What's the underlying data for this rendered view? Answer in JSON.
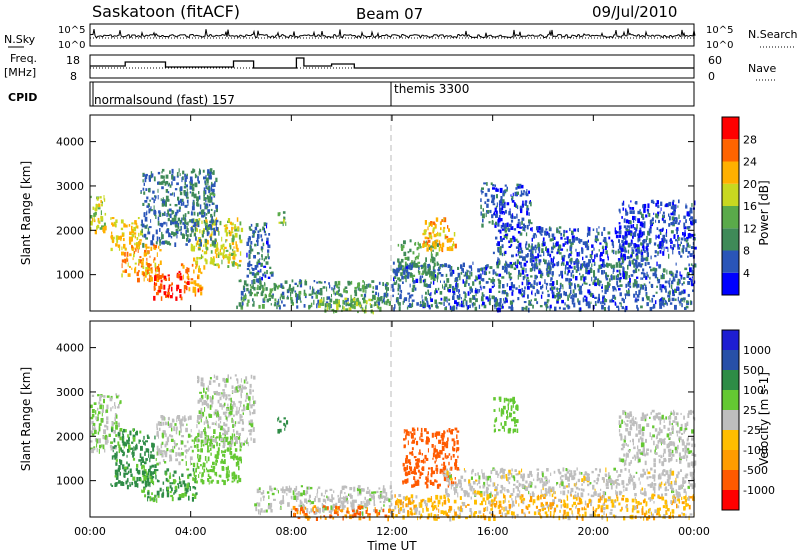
{
  "header": {
    "station": "Saskatoon (fitACF)",
    "beam": "Beam 07",
    "date": "09/Jul/2010"
  },
  "noise_panel": {
    "left_label": "N.Sky",
    "right_label": "N.Search",
    "left_ticks": [
      "10^5",
      "10^0"
    ],
    "right_ticks": [
      "10^5",
      "10^0"
    ]
  },
  "freq_panel": {
    "left_label_line1": "Freq.",
    "left_label_line2": "[MHz]",
    "left_ticks": [
      "18",
      "8"
    ],
    "right_label": "Nave",
    "right_ticks": [
      "60",
      "0"
    ]
  },
  "cpid_panel": {
    "label": "CPID",
    "modes": [
      {
        "name": "normalsound (fast) 157",
        "start_hour": 0
      },
      {
        "name": "themis 3300",
        "start_hour": 12.0
      }
    ]
  },
  "colors": {
    "power_scale": [
      "#0000ff",
      "#2a55b8",
      "#3f8a58",
      "#5aaa4a",
      "#c8d820",
      "#ffb000",
      "#ff6400",
      "#ff0000"
    ],
    "velocity_scale": [
      "#ff0000",
      "#ff5a00",
      "#ff9c00",
      "#ffbe00",
      "#bebebe",
      "#64c832",
      "#2e8c46",
      "#2850a8",
      "#1e1ed2"
    ],
    "noon_marker": "#bbbbbb"
  },
  "chart_data": [
    {
      "type": "heatmap",
      "quantity": "Power",
      "ylabel": "Slant Range [km]",
      "yticks": [
        1000,
        2000,
        3000,
        4000
      ],
      "ylim": [
        180,
        4600
      ],
      "xlim": [
        0,
        24
      ],
      "colorbar_label": "Power [dB]",
      "colorbar_ticks": [
        4,
        8,
        12,
        16,
        20,
        24,
        28
      ],
      "colorbar_range": [
        0,
        32
      ],
      "regions": [
        {
          "t0": 0.0,
          "t1": 0.6,
          "r0": 2000,
          "r1": 2900,
          "v": 18
        },
        {
          "t0": 0.8,
          "t1": 2.0,
          "r0": 1600,
          "r1": 2300,
          "v": 20
        },
        {
          "t0": 1.2,
          "t1": 2.8,
          "r0": 900,
          "r1": 1700,
          "v": 23
        },
        {
          "t0": 2.5,
          "t1": 3.6,
          "r0": 500,
          "r1": 1100,
          "v": 28
        },
        {
          "t0": 3.6,
          "t1": 4.4,
          "r0": 600,
          "r1": 1300,
          "v": 25
        },
        {
          "t0": 4.0,
          "t1": 6.0,
          "r0": 1200,
          "r1": 2300,
          "v": 18
        },
        {
          "t0": 2.0,
          "t1": 5.0,
          "r0": 1700,
          "r1": 3400,
          "v": 8
        },
        {
          "t0": 6.2,
          "t1": 7.2,
          "r0": 900,
          "r1": 2200,
          "v": 7
        },
        {
          "t0": 7.4,
          "t1": 7.8,
          "r0": 2150,
          "r1": 2450,
          "v": 13
        },
        {
          "t0": 5.8,
          "t1": 12.0,
          "r0": 300,
          "r1": 900,
          "v": 10
        },
        {
          "t0": 9.0,
          "t1": 11.5,
          "r0": 180,
          "r1": 500,
          "v": 16
        },
        {
          "t0": 12.2,
          "t1": 13.8,
          "r0": 900,
          "r1": 1800,
          "v": 12
        },
        {
          "t0": 13.2,
          "t1": 14.5,
          "r0": 1600,
          "r1": 2300,
          "v": 22
        },
        {
          "t0": 12.0,
          "t1": 24.0,
          "r0": 250,
          "r1": 1300,
          "v": 7
        },
        {
          "t0": 16.0,
          "t1": 22.0,
          "r0": 1200,
          "r1": 2100,
          "v": 6
        },
        {
          "t0": 21.0,
          "t1": 24.0,
          "r0": 1400,
          "r1": 2700,
          "v": 5
        },
        {
          "t0": 4.5,
          "t1": 5.0,
          "r0": 2000,
          "r1": 3200,
          "v": 9
        },
        {
          "t0": 15.5,
          "t1": 17.5,
          "r0": 2100,
          "r1": 3100,
          "v": 6
        }
      ]
    },
    {
      "type": "heatmap",
      "quantity": "Velocity",
      "ylabel": "Slant Range [km]",
      "yticks": [
        1000,
        2000,
        3000,
        4000
      ],
      "ylim": [
        180,
        4600
      ],
      "xlim": [
        0,
        24
      ],
      "xlabel": "Time UT",
      "xticks": [
        "00:00",
        "04:00",
        "08:00",
        "12:00",
        "16:00",
        "20:00",
        "00:00"
      ],
      "colorbar_label": "Velocity [m s-1]",
      "colorbar_ticks": [
        "1000",
        "500",
        "100",
        "25",
        "-25",
        "-100",
        "-500",
        "-1000"
      ],
      "regions": [
        {
          "t0": 0.0,
          "t1": 1.2,
          "r0": 1700,
          "r1": 3000,
          "v": 25
        },
        {
          "t0": 0.8,
          "t1": 2.6,
          "r0": 900,
          "r1": 2200,
          "v": 120
        },
        {
          "t0": 2.0,
          "t1": 4.2,
          "r0": 600,
          "r1": 1300,
          "v": 110
        },
        {
          "t0": 2.6,
          "t1": 4.0,
          "r0": 1400,
          "r1": 2500,
          "v": 10
        },
        {
          "t0": 4.0,
          "t1": 6.0,
          "r0": 1000,
          "r1": 2100,
          "v": 60
        },
        {
          "t0": 4.2,
          "t1": 6.5,
          "r0": 1800,
          "r1": 3400,
          "v": 15
        },
        {
          "t0": 6.5,
          "t1": 12.0,
          "r0": 300,
          "r1": 900,
          "v": 5
        },
        {
          "t0": 8.0,
          "t1": 12.0,
          "r0": 180,
          "r1": 450,
          "v": -90
        },
        {
          "t0": 12.4,
          "t1": 14.6,
          "r0": 900,
          "r1": 2200,
          "v": -200
        },
        {
          "t0": 14.0,
          "t1": 24.0,
          "r0": 700,
          "r1": 1300,
          "v": 0
        },
        {
          "t0": 12.0,
          "t1": 24.0,
          "r0": 180,
          "r1": 700,
          "v": -40
        },
        {
          "t0": 21.0,
          "t1": 24.0,
          "r0": 1400,
          "r1": 2600,
          "v": 5
        },
        {
          "t0": 7.4,
          "t1": 7.8,
          "r0": 2150,
          "r1": 2450,
          "v": 300
        },
        {
          "t0": 16.0,
          "t1": 17.0,
          "r0": 2100,
          "r1": 2900,
          "v": 60
        }
      ]
    }
  ]
}
